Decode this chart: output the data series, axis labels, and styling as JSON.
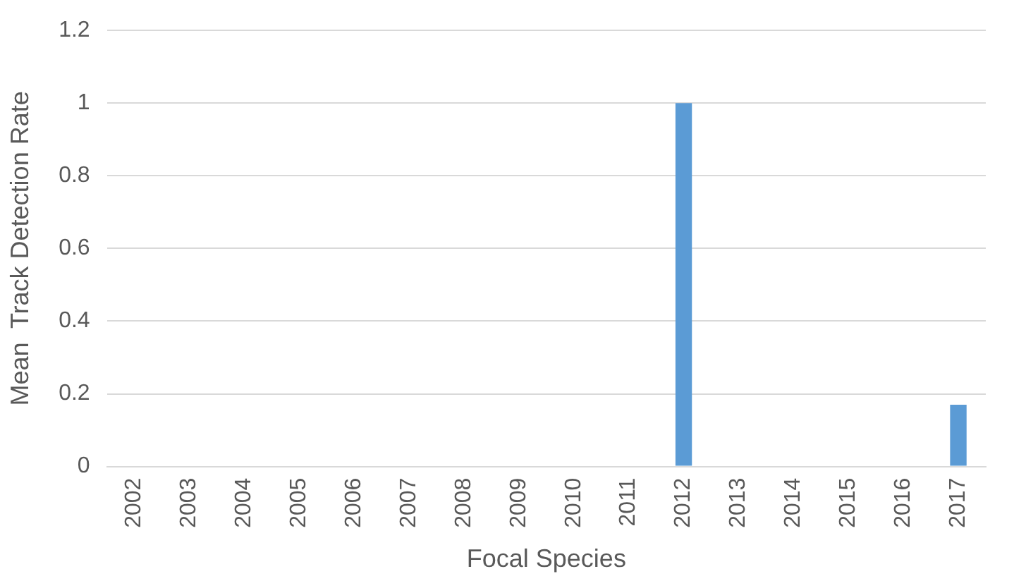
{
  "chart_data": {
    "type": "bar",
    "xlabel": "Focal Species",
    "ylabel": "Mean  Track Detection Rate",
    "categories": [
      "2002",
      "2003",
      "2004",
      "2005",
      "2006",
      "2007",
      "2008",
      "2009",
      "2010",
      "2011",
      "2012",
      "2013",
      "2014",
      "2015",
      "2016",
      "2017"
    ],
    "values": [
      0,
      0,
      0,
      0,
      0,
      0,
      0,
      0,
      0,
      0,
      1,
      0,
      0,
      0,
      0,
      0.17
    ],
    "color": "#5b9bd5",
    "ylim": [
      0,
      1.2
    ],
    "yticks": [
      0,
      0.2,
      0.4,
      0.6,
      0.8,
      1,
      1.2
    ],
    "grid": "y",
    "legend": false
  }
}
